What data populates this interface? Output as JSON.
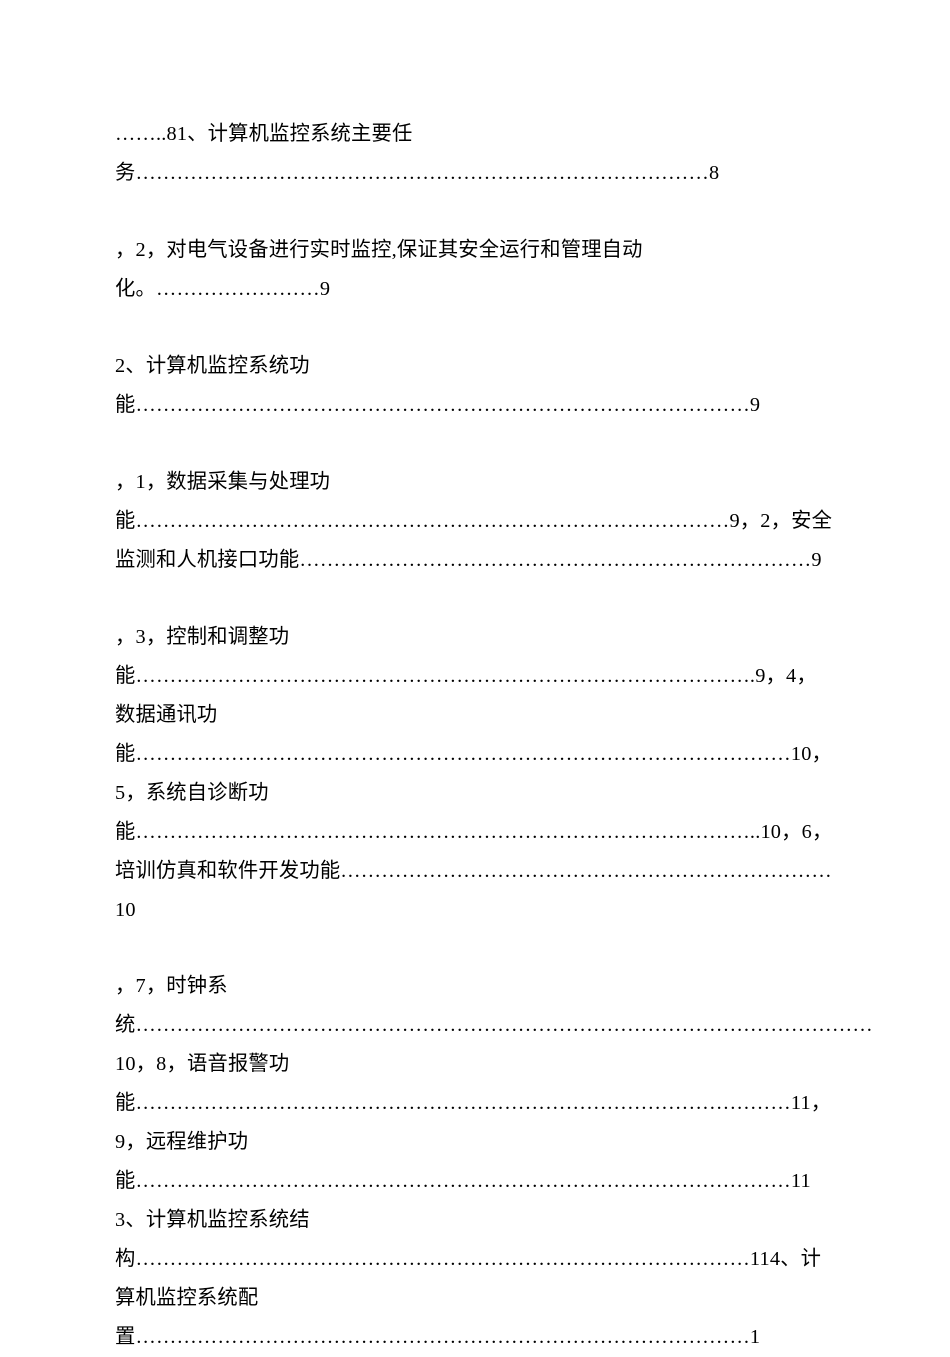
{
  "document": {
    "font_family": "SimSun",
    "font_size": 20.3,
    "line_height": 1.92,
    "text_color": "#000000",
    "background_color": "#ffffff",
    "paragraph_spacing": 38,
    "paragraphs": [
      "……..81、计算机监控系统主要任务…………………………………………………………………………8",
      "，2，对电气设备进行实时监控,保证其安全运行和管理自动化。……………………9",
      "2、计算机监控系统功能………………………………………………………………………………9",
      "，1，数据采集与处理功能……………………………………………………………………………9，2，安全监测和人机接口功能…………………………………………………………………9",
      "，3，控制和调整功能……………………………………………………………………………….9，4，数据通讯功能……………………………………………………………………………………10，5，系统自诊断功能………………………………………………………………………………..10，6，培训仿真和软件开发功能………………………………………………………………10",
      "，7，时钟系统………………………………………………………………………………………………10，8，语音报警功能……………………………………………………………………………………11，9，远程维护功能……………………………………………………………………………………113、计算机监控系统结构………………………………………………………………………………114、计算机监控系统配置………………………………………………………………………………1"
    ]
  }
}
